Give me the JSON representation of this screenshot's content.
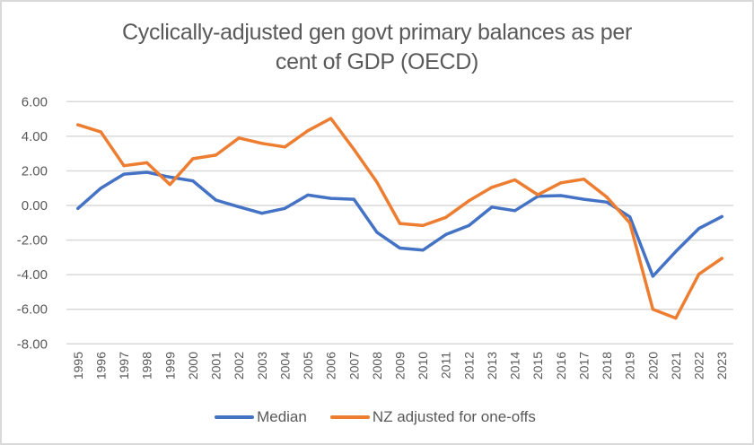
{
  "chart_data": {
    "type": "line",
    "title": "Cyclically-adjusted gen govt primary balances as per cent of GDP (OECD)",
    "title_lines": [
      "Cyclically-adjusted gen govt primary balances as per",
      "cent of GDP (OECD)"
    ],
    "xlabel": "",
    "ylabel": "",
    "ylim": [
      -8,
      6
    ],
    "yticks": [
      6,
      4,
      2,
      0,
      -2,
      -4,
      -6,
      -8
    ],
    "ytick_labels": [
      "6.00",
      "4.00",
      "2.00",
      "0.00",
      "-2.00",
      "-4.00",
      "-6.00",
      "-8.00"
    ],
    "grid": true,
    "legend_position": "bottom",
    "categories": [
      "1995",
      "1996",
      "1997",
      "1998",
      "1999",
      "2000",
      "2001",
      "2002",
      "2003",
      "2004",
      "2005",
      "2006",
      "2007",
      "2008",
      "2009",
      "2010",
      "2011",
      "2012",
      "2013",
      "2014",
      "2015",
      "2016",
      "2017",
      "2018",
      "2019",
      "2020",
      "2021",
      "2022",
      "2023"
    ],
    "series": [
      {
        "name": "Median",
        "color": "#4472c4",
        "values": [
          -0.17,
          1.0,
          1.81,
          1.92,
          1.64,
          1.42,
          0.31,
          -0.08,
          -0.45,
          -0.17,
          0.6,
          0.41,
          0.36,
          -1.55,
          -2.46,
          -2.58,
          -1.68,
          -1.16,
          -0.09,
          -0.3,
          0.53,
          0.57,
          0.36,
          0.19,
          -0.66,
          -4.09,
          -2.66,
          -1.33,
          -0.64
        ]
      },
      {
        "name": "NZ adjusted for one-offs",
        "color": "#ed7d31",
        "values": [
          4.66,
          4.25,
          2.3,
          2.47,
          1.21,
          2.7,
          2.91,
          3.9,
          3.59,
          3.38,
          4.32,
          5.03,
          3.24,
          1.35,
          -1.04,
          -1.16,
          -0.69,
          0.27,
          1.05,
          1.48,
          0.62,
          1.31,
          1.52,
          0.48,
          -1.01,
          -6.0,
          -6.51,
          -3.97,
          -3.06
        ]
      }
    ]
  }
}
